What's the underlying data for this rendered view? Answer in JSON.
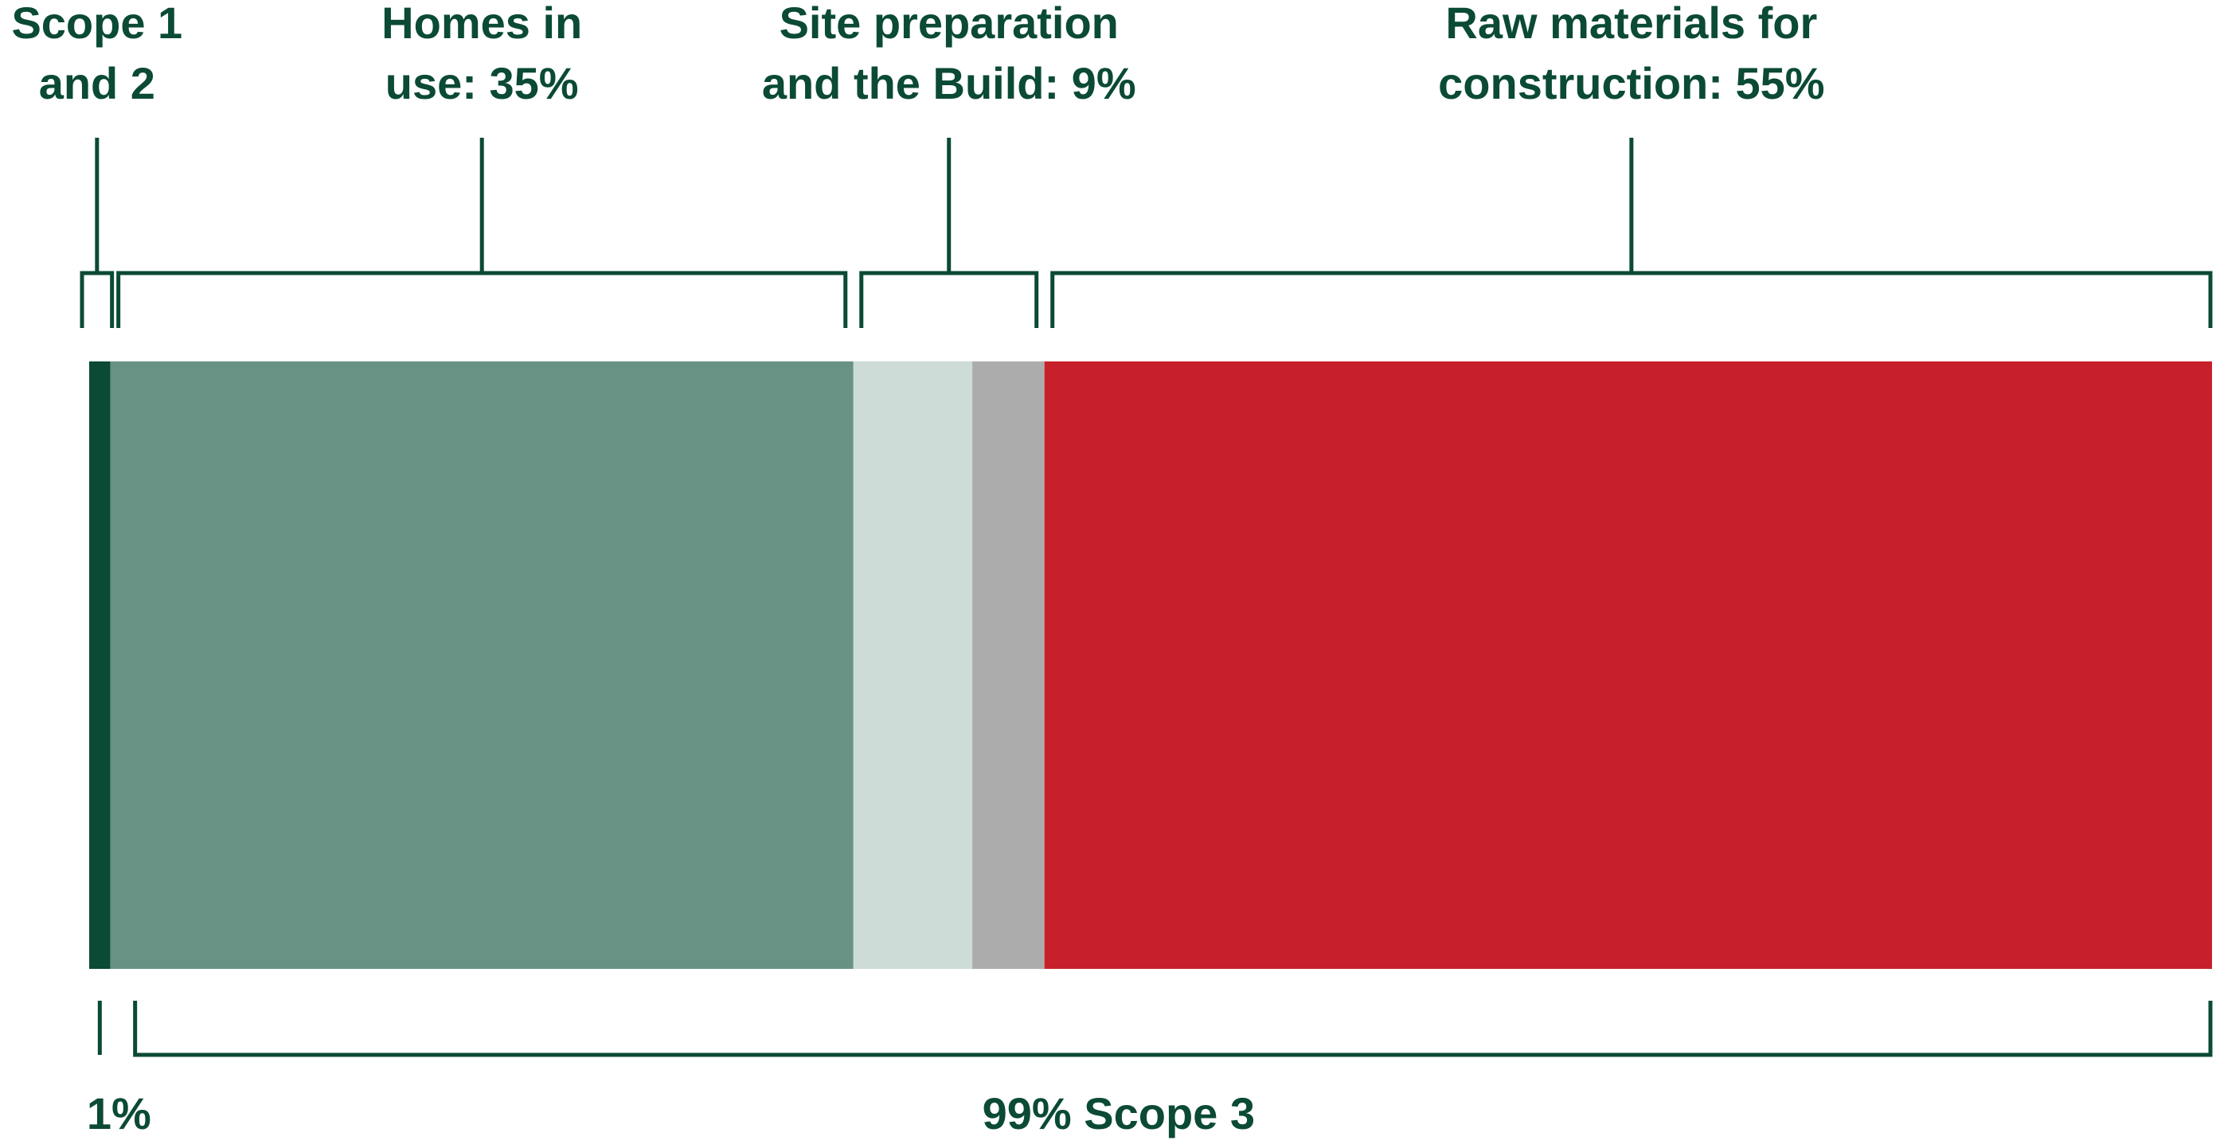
{
  "chart_data": {
    "type": "bar",
    "orientation": "horizontal-stacked",
    "unit": "%",
    "segments": [
      {
        "key": "scope12",
        "value": 1,
        "color": "#0b4a35"
      },
      {
        "key": "homes",
        "value": 35,
        "color": "#679284"
      },
      {
        "key": "site_prep",
        "value": 5.6,
        "color": "#cddcd6"
      },
      {
        "key": "build",
        "value": 3.4,
        "color": "#acacac"
      },
      {
        "key": "raw",
        "value": 55,
        "color": "#c8202b"
      }
    ],
    "top_brackets": [
      {
        "label_lines": [
          "Scope 1",
          "and 2"
        ],
        "segments": [
          "scope12"
        ]
      },
      {
        "label_lines": [
          "Homes in",
          "use: 35%"
        ],
        "segments": [
          "homes"
        ]
      },
      {
        "label_lines": [
          "Site preparation",
          "and the Build: 9%"
        ],
        "segments": [
          "site_prep",
          "build"
        ]
      },
      {
        "label_lines": [
          "Raw materials for",
          "construction: 55%"
        ],
        "segments": [
          "raw"
        ]
      }
    ],
    "bottom_brackets": [
      {
        "label": "1%",
        "segments": [
          "scope12"
        ]
      },
      {
        "label": "99% Scope 3",
        "segments": [
          "homes",
          "site_prep",
          "build",
          "raw"
        ]
      }
    ]
  },
  "colors": {
    "text": "#0b4a35",
    "bracket": "#0b4a35"
  }
}
